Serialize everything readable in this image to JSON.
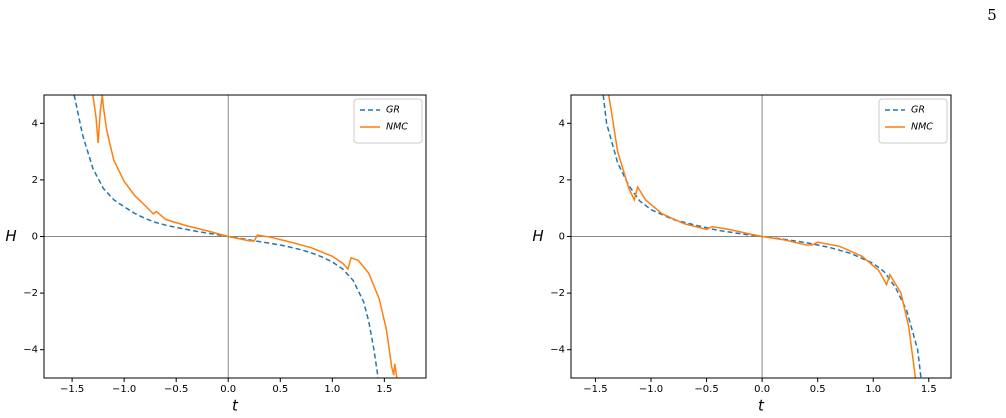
{
  "page_number": "5",
  "chart_data": [
    {
      "type": "line",
      "xlabel": "t",
      "ylabel": "H",
      "xlim": [
        -1.77,
        1.9
      ],
      "ylim": [
        -5,
        5
      ],
      "xticks": [
        {
          "value": -1.5,
          "label": "−1.5"
        },
        {
          "value": -1.0,
          "label": "−1.0"
        },
        {
          "value": -0.5,
          "label": "−0.5"
        },
        {
          "value": 0,
          "label": "0.0"
        },
        0.5,
        {
          "value": 1.0,
          "label": "1.0"
        },
        1.5
      ],
      "yticks": [
        {
          "value": -4,
          "label": "−4"
        },
        {
          "value": -2,
          "label": "−2"
        },
        0,
        2,
        4
      ],
      "zero_lines": true,
      "legend": "upper right",
      "series": [
        {
          "name": "GR",
          "color": "#1f77b4",
          "dash": "dashed",
          "x": [
            -1.48,
            -1.4,
            -1.3,
            -1.2,
            -1.1,
            -1.0,
            -0.9,
            -0.8,
            -0.7,
            -0.6,
            -0.5,
            -0.4,
            -0.3,
            -0.2,
            -0.1,
            0,
            0.1,
            0.2,
            0.3,
            0.4,
            0.5,
            0.6,
            0.7,
            0.8,
            0.9,
            1.0,
            1.1,
            1.2,
            1.3,
            1.35,
            1.4,
            1.44
          ],
          "values": [
            5,
            3.6,
            2.4,
            1.7,
            1.3,
            1.05,
            0.82,
            0.64,
            0.5,
            0.4,
            0.32,
            0.25,
            0.18,
            0.12,
            0.06,
            0,
            -0.06,
            -0.12,
            -0.18,
            -0.24,
            -0.3,
            -0.38,
            -0.47,
            -0.58,
            -0.72,
            -0.9,
            -1.15,
            -1.55,
            -2.3,
            -3.0,
            -4.0,
            -5
          ]
        },
        {
          "name": "NMC",
          "color": "#ff7f0e",
          "dash": "solid",
          "x": [
            -1.3,
            -1.27,
            -1.25,
            -1.23,
            -1.21,
            -1.2,
            -1.17,
            -1.1,
            -1.0,
            -0.9,
            -0.8,
            -0.72,
            -0.69,
            -0.6,
            -0.4,
            -0.2,
            0,
            0.2,
            0.25,
            0.28,
            0.4,
            0.6,
            0.8,
            1.0,
            1.1,
            1.15,
            1.18,
            1.25,
            1.35,
            1.45,
            1.52,
            1.57,
            1.59,
            1.6,
            1.62
          ],
          "values": [
            5,
            4.2,
            3.3,
            4.4,
            5,
            4.6,
            3.8,
            2.7,
            1.95,
            1.45,
            1.1,
            0.8,
            0.88,
            0.6,
            0.38,
            0.2,
            0,
            -0.15,
            -0.16,
            0.05,
            -0.02,
            -0.2,
            -0.4,
            -0.7,
            -0.95,
            -1.15,
            -0.75,
            -0.85,
            -1.3,
            -2.2,
            -3.3,
            -4.6,
            -4.9,
            -4.5,
            -5
          ]
        }
      ]
    },
    {
      "type": "line",
      "xlabel": "t",
      "ylabel": "H",
      "xlim": [
        -1.72,
        1.7
      ],
      "ylim": [
        -5,
        5
      ],
      "xticks": [
        {
          "value": -1.5,
          "label": "−1.5"
        },
        {
          "value": -1.0,
          "label": "−1.0"
        },
        {
          "value": -0.5,
          "label": "−0.5"
        },
        {
          "value": 0,
          "label": "0.0"
        },
        0.5,
        {
          "value": 1.0,
          "label": "1.0"
        },
        1.5
      ],
      "yticks": [
        {
          "value": -4,
          "label": "−4"
        },
        {
          "value": -2,
          "label": "−2"
        },
        0,
        2,
        4
      ],
      "zero_lines": true,
      "legend": "upper right",
      "series": [
        {
          "name": "GR",
          "color": "#1f77b4",
          "dash": "dashed",
          "x": [
            -1.43,
            -1.4,
            -1.3,
            -1.2,
            -1.1,
            -1.0,
            -0.8,
            -0.6,
            -0.4,
            -0.2,
            0,
            0.2,
            0.4,
            0.6,
            0.8,
            1.0,
            1.1,
            1.2,
            1.3,
            1.4,
            1.43
          ],
          "values": [
            5,
            4.0,
            2.6,
            1.8,
            1.25,
            0.95,
            0.6,
            0.4,
            0.22,
            0.1,
            0,
            -0.1,
            -0.22,
            -0.38,
            -0.6,
            -0.95,
            -1.25,
            -1.8,
            -2.6,
            -4.0,
            -5
          ]
        },
        {
          "name": "NMC",
          "color": "#ff7f0e",
          "dash": "solid",
          "x": [
            -1.38,
            -1.3,
            -1.2,
            -1.15,
            -1.12,
            -1.05,
            -0.9,
            -0.7,
            -0.5,
            -0.45,
            -0.3,
            -0.1,
            0,
            0.2,
            0.4,
            0.45,
            0.5,
            0.7,
            0.9,
            1.05,
            1.12,
            1.15,
            1.25,
            1.32,
            1.38
          ],
          "values": [
            5,
            3.0,
            1.7,
            1.3,
            1.75,
            1.3,
            0.8,
            0.45,
            0.25,
            0.35,
            0.25,
            0.08,
            0,
            -0.12,
            -0.3,
            -0.3,
            -0.2,
            -0.35,
            -0.7,
            -1.2,
            -1.7,
            -1.35,
            -2.0,
            -3.2,
            -5
          ]
        }
      ]
    }
  ]
}
